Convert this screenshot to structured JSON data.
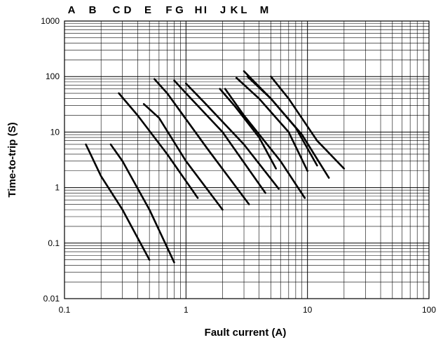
{
  "chart_data": {
    "type": "line",
    "title": "",
    "xlabel": "Fault current (A)",
    "ylabel": "Time-to-trip (S)",
    "x_scale": "log",
    "y_scale": "log",
    "xlim": [
      0.1,
      100
    ],
    "ylim": [
      0.01,
      1000
    ],
    "grid": true,
    "x_tick_values": [
      0.1,
      1,
      10,
      100
    ],
    "x_tick_labels": [
      "0.1",
      "1",
      "10",
      "100"
    ],
    "y_tick_values": [
      0.01,
      0.1,
      1,
      10,
      100,
      1000
    ],
    "y_tick_labels": [
      "0.01",
      "0.1",
      "1",
      "10",
      "100",
      "1000"
    ],
    "curve_labels": [
      "A",
      "B",
      "C",
      "D",
      "E",
      "F",
      "G",
      "H",
      "I",
      "J",
      "K",
      "L",
      "M"
    ],
    "series": [
      {
        "name": "A",
        "points": [
          [
            0.15,
            6
          ],
          [
            0.2,
            1.6
          ],
          [
            0.3,
            0.4
          ],
          [
            0.5,
            0.05
          ]
        ]
      },
      {
        "name": "B",
        "points": [
          [
            0.24,
            6
          ],
          [
            0.3,
            3
          ],
          [
            0.5,
            0.4
          ],
          [
            0.8,
            0.045
          ]
        ]
      },
      {
        "name": "C",
        "points": [
          [
            0.28,
            50
          ],
          [
            0.4,
            20
          ],
          [
            0.7,
            4
          ],
          [
            1.25,
            0.65
          ]
        ]
      },
      {
        "name": "D",
        "points": [
          [
            0.45,
            32
          ],
          [
            0.6,
            18
          ],
          [
            1,
            3
          ],
          [
            2,
            0.4
          ]
        ]
      },
      {
        "name": "E",
        "points": [
          [
            0.55,
            90
          ],
          [
            0.7,
            50
          ],
          [
            1.5,
            5
          ],
          [
            3.3,
            0.5
          ]
        ]
      },
      {
        "name": "F",
        "points": [
          [
            0.8,
            85
          ],
          [
            1,
            50
          ],
          [
            2,
            10
          ],
          [
            4.5,
            0.8
          ]
        ]
      },
      {
        "name": "G",
        "points": [
          [
            1,
            75
          ],
          [
            1.4,
            35
          ],
          [
            3,
            6
          ],
          [
            5.8,
            0.95
          ]
        ]
      },
      {
        "name": "H",
        "points": [
          [
            1.9,
            60
          ],
          [
            2.5,
            30
          ],
          [
            4,
            8
          ],
          [
            5.5,
            2.2
          ]
        ]
      },
      {
        "name": "I",
        "points": [
          [
            2.1,
            60
          ],
          [
            3,
            20
          ],
          [
            6,
            3
          ],
          [
            9.5,
            0.65
          ]
        ]
      },
      {
        "name": "J",
        "points": [
          [
            2.6,
            95
          ],
          [
            4,
            40
          ],
          [
            7,
            10
          ],
          [
            10,
            2
          ]
        ]
      },
      {
        "name": "K",
        "points": [
          [
            3,
            125
          ],
          [
            5,
            40
          ],
          [
            9,
            9
          ],
          [
            15,
            1.5
          ]
        ]
      },
      {
        "name": "L",
        "points": [
          [
            3.2,
            100
          ],
          [
            5,
            40
          ],
          [
            8,
            12
          ],
          [
            12,
            2.5
          ]
        ]
      },
      {
        "name": "M",
        "points": [
          [
            5,
            100
          ],
          [
            7,
            40
          ],
          [
            12,
            7
          ],
          [
            20,
            2.2
          ]
        ]
      }
    ]
  }
}
